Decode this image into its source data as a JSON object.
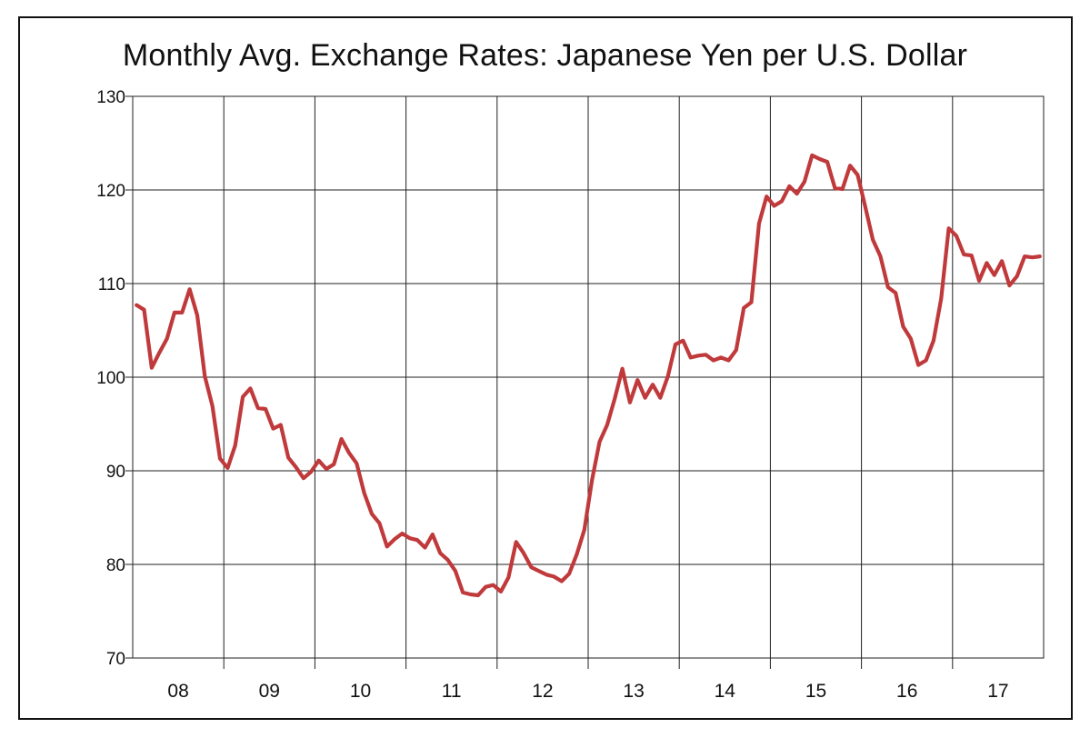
{
  "chart_data": {
    "type": "line",
    "title": "Monthly Avg. Exchange Rates: Japanese Yen per U.S. Dollar",
    "xlabel": "",
    "ylabel": "",
    "ylim": [
      70,
      130
    ],
    "y_ticks": [
      70,
      80,
      90,
      100,
      110,
      120,
      130
    ],
    "x_tick_labels": [
      "08",
      "09",
      "10",
      "11",
      "12",
      "13",
      "14",
      "15",
      "16",
      "17"
    ],
    "x_domain": [
      "2008-01",
      "2017-12"
    ],
    "grid": true,
    "line_color": "#c0393b",
    "series": [
      {
        "x": [
          "2008-01",
          "2008-02",
          "2008-03",
          "2008-04",
          "2008-05",
          "2008-06",
          "2008-07",
          "2008-08",
          "2008-09",
          "2008-10",
          "2008-11",
          "2008-12",
          "2009-01",
          "2009-02",
          "2009-03",
          "2009-04",
          "2009-05",
          "2009-06",
          "2009-07",
          "2009-08",
          "2009-09",
          "2009-10",
          "2009-11",
          "2009-12",
          "2010-01",
          "2010-02",
          "2010-03",
          "2010-04",
          "2010-05",
          "2010-06",
          "2010-07",
          "2010-08",
          "2010-09",
          "2010-10",
          "2010-11",
          "2010-12",
          "2011-01",
          "2011-02",
          "2011-03",
          "2011-04",
          "2011-05",
          "2011-06",
          "2011-07",
          "2011-08",
          "2011-09",
          "2011-10",
          "2011-11",
          "2011-12",
          "2012-01",
          "2012-02",
          "2012-03",
          "2012-04",
          "2012-05",
          "2012-06",
          "2012-07",
          "2012-08",
          "2012-09",
          "2012-10",
          "2012-11",
          "2012-12",
          "2013-01",
          "2013-02",
          "2013-03",
          "2013-04",
          "2013-05",
          "2013-06",
          "2013-07",
          "2013-08",
          "2013-09",
          "2013-10",
          "2013-11",
          "2013-12",
          "2014-01",
          "2014-02",
          "2014-03",
          "2014-04",
          "2014-05",
          "2014-06",
          "2014-07",
          "2014-08",
          "2014-09",
          "2014-10",
          "2014-11",
          "2014-12",
          "2015-01",
          "2015-02",
          "2015-03",
          "2015-04",
          "2015-05",
          "2015-06",
          "2015-07",
          "2015-08",
          "2015-09",
          "2015-10",
          "2015-11",
          "2015-12",
          "2016-01",
          "2016-02",
          "2016-03",
          "2016-04",
          "2016-05",
          "2016-06",
          "2016-07",
          "2016-08",
          "2016-09",
          "2016-10",
          "2016-11",
          "2016-12",
          "2017-01",
          "2017-02",
          "2017-03",
          "2017-04",
          "2017-05",
          "2017-06",
          "2017-07",
          "2017-08",
          "2017-09",
          "2017-10",
          "2017-11",
          "2017-12"
        ],
        "values": [
          107.7,
          107.2,
          101.0,
          102.6,
          104.1,
          106.9,
          106.9,
          109.4,
          106.6,
          100.1,
          96.9,
          91.3,
          90.3,
          92.7,
          97.9,
          98.8,
          96.7,
          96.6,
          94.5,
          94.9,
          91.4,
          90.4,
          89.2,
          89.9,
          91.1,
          90.2,
          90.7,
          93.4,
          91.9,
          90.8,
          87.6,
          85.4,
          84.4,
          81.9,
          82.7,
          83.3,
          82.8,
          82.6,
          81.8,
          83.2,
          81.2,
          80.5,
          79.3,
          77.0,
          76.8,
          76.7,
          77.6,
          77.8,
          77.1,
          78.6,
          82.4,
          81.2,
          79.7,
          79.3,
          78.9,
          78.7,
          78.2,
          79.0,
          81.1,
          83.7,
          89.0,
          93.1,
          94.9,
          97.7,
          100.9,
          97.3,
          99.7,
          97.8,
          99.2,
          97.8,
          100.1,
          103.5,
          103.9,
          102.1,
          102.3,
          102.4,
          101.8,
          102.1,
          101.8,
          102.9,
          107.4,
          108.0,
          116.4,
          119.3,
          118.3,
          118.8,
          120.4,
          119.6,
          120.9,
          123.7,
          123.3,
          123.0,
          120.2,
          120.1,
          122.6,
          121.6,
          118.2,
          114.7,
          112.9,
          109.6,
          109.0,
          105.4,
          104.1,
          101.3,
          101.8,
          103.9,
          108.4,
          115.9,
          115.1,
          113.1,
          113.0,
          110.3,
          112.2,
          110.9,
          112.4,
          109.8,
          110.8,
          112.9,
          112.8,
          112.9
        ]
      }
    ]
  }
}
